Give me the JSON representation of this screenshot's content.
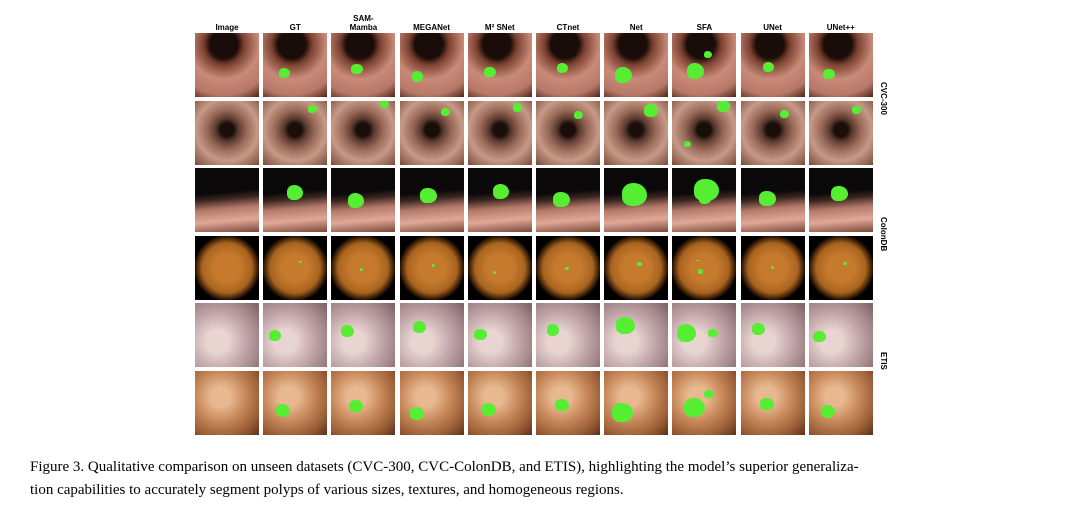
{
  "figure": {
    "columns": [
      "Image",
      "GT",
      "SAM-\nMamba",
      "MEGANet",
      "M² SNet",
      "CTnet",
      "Net",
      "SFA",
      "UNet",
      "UNet++"
    ],
    "row_labels": [
      "CVC-300",
      "ColonDB",
      "ETIS"
    ],
    "caption": [
      "Figure 3. Qualitative comparison on unseen datasets (CVC-300, CVC-ColonDB, and ETIS), highlighting the model’s superior generaliza-",
      "tion capabilities to accurately segment polyps of various sizes, textures, and homogeneous regions."
    ]
  }
}
